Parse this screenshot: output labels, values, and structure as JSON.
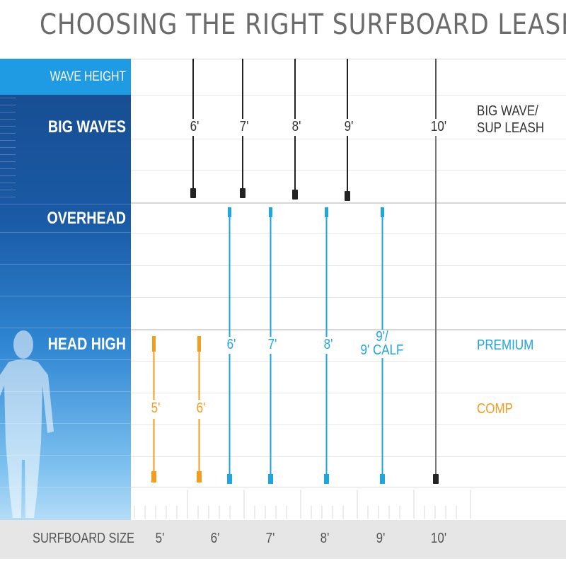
{
  "title": "CHOOSING THE RIGHT SURFBOARD LEASH",
  "y_axis_label": "WAVE HEIGHT",
  "wave_levels": [
    "BIG WAVES",
    "OVERHEAD",
    "HEAD HIGH"
  ],
  "x_axis_label": "SURFBOARD SIZE",
  "surfboard_sizes": [
    "5'",
    "6'",
    "7'",
    "8'",
    "9'",
    "10'"
  ],
  "categories": {
    "big_wave": {
      "label": "BIG WAVE/\nSUP LEASH",
      "color": "#222222",
      "leashes": [
        "6'",
        "7'",
        "8'",
        "9'"
      ]
    },
    "big_wave_10": {
      "label": "10'",
      "color": "#555555"
    },
    "premium": {
      "label": "PREMIUM",
      "color": "#1fa6e0",
      "leashes": [
        "6'",
        "7'",
        "8'",
        "9'/\n9' CALF"
      ]
    },
    "comp": {
      "label": "COMP",
      "color": "#f29d1c",
      "leashes": [
        "5'",
        "6'"
      ]
    }
  },
  "colors": {
    "panel_top": "#174b8e",
    "panel_band": "#1f9be3",
    "premium": "#1fa6e0",
    "comp": "#f29d1c",
    "big_wave": "#222222"
  },
  "icons": {
    "person": "person-silhouette-icon"
  }
}
